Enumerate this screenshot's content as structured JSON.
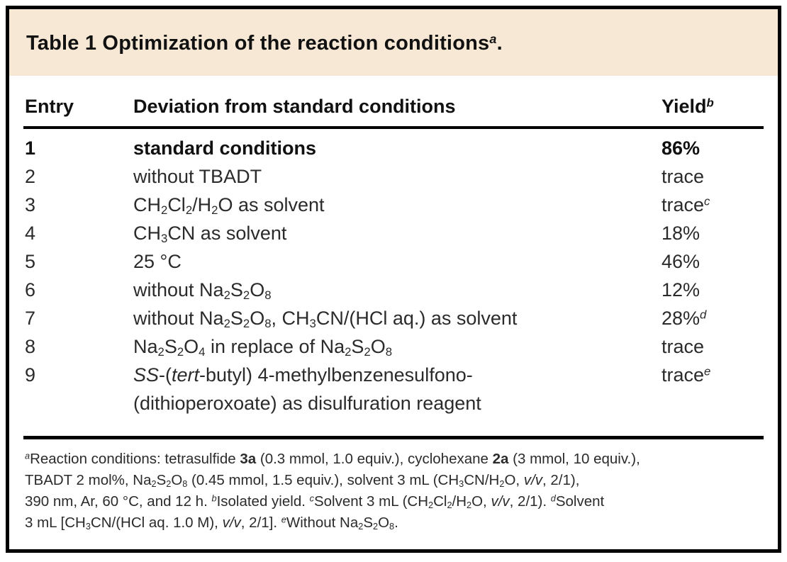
{
  "title": {
    "segments": [
      {
        "t": "Table 1 Optimization of the reaction conditions"
      },
      {
        "t": "a",
        "s": "sup-i"
      },
      {
        "t": "."
      }
    ]
  },
  "table": {
    "headers": {
      "entry": "Entry",
      "deviation": "Deviation from standard conditions",
      "yield": [
        {
          "t": "Yield"
        },
        {
          "t": "b",
          "s": "sup-i"
        }
      ]
    },
    "rows": [
      {
        "entry": "1",
        "bold": true,
        "deviation": [
          {
            "t": "standard conditions"
          }
        ],
        "yield": [
          {
            "t": "86%"
          }
        ]
      },
      {
        "entry": "2",
        "bold": false,
        "deviation": [
          {
            "t": "without TBADT"
          }
        ],
        "yield": [
          {
            "t": "trace"
          }
        ]
      },
      {
        "entry": "3",
        "bold": false,
        "deviation": [
          {
            "t": "CH"
          },
          {
            "t": "2",
            "s": "sub"
          },
          {
            "t": "Cl"
          },
          {
            "t": "2",
            "s": "sub"
          },
          {
            "t": "/H"
          },
          {
            "t": "2",
            "s": "sub"
          },
          {
            "t": "O as solvent"
          }
        ],
        "yield": [
          {
            "t": "trace"
          },
          {
            "t": "c",
            "s": "sup-i"
          }
        ]
      },
      {
        "entry": "4",
        "bold": false,
        "deviation": [
          {
            "t": "CH"
          },
          {
            "t": "3",
            "s": "sub"
          },
          {
            "t": "CN as solvent"
          }
        ],
        "yield": [
          {
            "t": "18%"
          }
        ]
      },
      {
        "entry": "5",
        "bold": false,
        "deviation": [
          {
            "t": "25 °C"
          }
        ],
        "yield": [
          {
            "t": "46%"
          }
        ]
      },
      {
        "entry": "6",
        "bold": false,
        "deviation": [
          {
            "t": "without Na"
          },
          {
            "t": "2",
            "s": "sub"
          },
          {
            "t": "S"
          },
          {
            "t": "2",
            "s": "sub"
          },
          {
            "t": "O"
          },
          {
            "t": "8",
            "s": "sub"
          }
        ],
        "yield": [
          {
            "t": "12%"
          }
        ]
      },
      {
        "entry": "7",
        "bold": false,
        "deviation": [
          {
            "t": "without Na"
          },
          {
            "t": "2",
            "s": "sub"
          },
          {
            "t": "S"
          },
          {
            "t": "2",
            "s": "sub"
          },
          {
            "t": "O"
          },
          {
            "t": "8",
            "s": "sub"
          },
          {
            "t": ", CH"
          },
          {
            "t": "3",
            "s": "sub"
          },
          {
            "t": "CN/(HCl aq.) as solvent"
          }
        ],
        "yield": [
          {
            "t": "28%"
          },
          {
            "t": "d",
            "s": "sup-i"
          }
        ]
      },
      {
        "entry": "8",
        "bold": false,
        "deviation": [
          {
            "t": "Na"
          },
          {
            "t": "2",
            "s": "sub"
          },
          {
            "t": "S"
          },
          {
            "t": "2",
            "s": "sub"
          },
          {
            "t": "O"
          },
          {
            "t": "4",
            "s": "sub"
          },
          {
            "t": " in replace of Na"
          },
          {
            "t": "2",
            "s": "sub"
          },
          {
            "t": "S"
          },
          {
            "t": "2",
            "s": "sub"
          },
          {
            "t": "O"
          },
          {
            "t": "8",
            "s": "sub"
          }
        ],
        "yield": [
          {
            "t": "trace"
          }
        ]
      },
      {
        "entry": "9",
        "bold": false,
        "deviation": [
          {
            "t": "SS",
            "s": "i"
          },
          {
            "t": "-("
          },
          {
            "t": "tert",
            "s": "i"
          },
          {
            "t": "-butyl) 4-methylbenzenesulfono-"
          },
          {
            "br": true
          },
          {
            "t": "(dithioperoxoate) as disulfuration reagent"
          }
        ],
        "yield": [
          {
            "t": "trace"
          },
          {
            "t": "e",
            "s": "sup-i"
          }
        ]
      }
    ]
  },
  "footnote": {
    "segments": [
      {
        "t": "a",
        "s": "sup-i"
      },
      {
        "t": "Reaction conditions: tetrasulfide "
      },
      {
        "t": "3a",
        "s": "b"
      },
      {
        "t": " (0.3 mmol, 1.0 equiv.), cyclohexane "
      },
      {
        "t": "2a",
        "s": "b"
      },
      {
        "t": " (3 mmol, 10 equiv.),"
      },
      {
        "br": true
      },
      {
        "t": "TBADT 2 mol%, Na"
      },
      {
        "t": "2",
        "s": "sub"
      },
      {
        "t": "S"
      },
      {
        "t": "2",
        "s": "sub"
      },
      {
        "t": "O"
      },
      {
        "t": "8",
        "s": "sub"
      },
      {
        "t": " (0.45 mmol, 1.5 equiv.), solvent 3 mL (CH"
      },
      {
        "t": "3",
        "s": "sub"
      },
      {
        "t": "CN/H"
      },
      {
        "t": "2",
        "s": "sub"
      },
      {
        "t": "O, "
      },
      {
        "t": "v/v",
        "s": "i"
      },
      {
        "t": ", 2/1),"
      },
      {
        "br": true
      },
      {
        "t": "390 nm, Ar, 60 °C, and 12 h. "
      },
      {
        "t": "b",
        "s": "sup-i"
      },
      {
        "t": "Isolated yield. "
      },
      {
        "t": "c",
        "s": "sup-i"
      },
      {
        "t": "Solvent 3 mL (CH"
      },
      {
        "t": "2",
        "s": "sub"
      },
      {
        "t": "Cl"
      },
      {
        "t": "2",
        "s": "sub"
      },
      {
        "t": "/H"
      },
      {
        "t": "2",
        "s": "sub"
      },
      {
        "t": "O, "
      },
      {
        "t": "v/v",
        "s": "i"
      },
      {
        "t": ", 2/1). "
      },
      {
        "t": "d",
        "s": "sup-i"
      },
      {
        "t": "Solvent"
      },
      {
        "br": true
      },
      {
        "t": "3 mL [CH"
      },
      {
        "t": "3",
        "s": "sub"
      },
      {
        "t": "CN/(HCl aq. 1.0 M), "
      },
      {
        "t": "v/v",
        "s": "i"
      },
      {
        "t": ", 2/1]. "
      },
      {
        "t": "e",
        "s": "sup-i"
      },
      {
        "t": "Without Na"
      },
      {
        "t": "2",
        "s": "sub"
      },
      {
        "t": "S"
      },
      {
        "t": "2",
        "s": "sub"
      },
      {
        "t": "O"
      },
      {
        "t": "8",
        "s": "sub"
      },
      {
        "t": "."
      }
    ]
  },
  "colors": {
    "title_band_bg": "#f6e8d5",
    "border": "#000000",
    "text": "#1c1c1c"
  }
}
